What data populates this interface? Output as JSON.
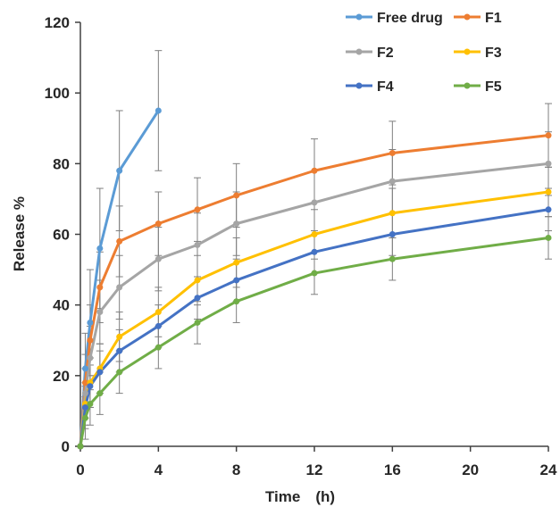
{
  "chart_data": {
    "type": "line",
    "xlabel": "Time　(h)",
    "ylabel": "Release %",
    "xlim": [
      0,
      24
    ],
    "ylim": [
      0,
      120
    ],
    "xticks": [
      0,
      4,
      8,
      12,
      16,
      20,
      24
    ],
    "yticks": [
      0,
      20,
      40,
      60,
      80,
      100,
      120
    ],
    "grid": false,
    "legend_position": "top-right",
    "series": [
      {
        "name": "Free drug",
        "color": "#5B9BD5",
        "x": [
          0,
          0.25,
          0.5,
          1,
          2,
          4
        ],
        "y": [
          0,
          22,
          35,
          56,
          78,
          95
        ],
        "err": [
          0,
          10,
          15,
          17,
          17,
          17
        ]
      },
      {
        "name": "F1",
        "color": "#ED7D31",
        "x": [
          0,
          0.25,
          0.5,
          1,
          2,
          4,
          6,
          8,
          12,
          16,
          24
        ],
        "y": [
          0,
          18,
          30,
          45,
          58,
          63,
          67,
          71,
          78,
          83,
          88
        ],
        "err": [
          0,
          8,
          10,
          10,
          10,
          9,
          9,
          9,
          9,
          9,
          9
        ]
      },
      {
        "name": "F2",
        "color": "#A5A5A5",
        "x": [
          0,
          0.25,
          0.5,
          1,
          2,
          4,
          6,
          8,
          12,
          16,
          24
        ],
        "y": [
          0,
          15,
          25,
          38,
          45,
          53,
          57,
          63,
          69,
          75,
          80
        ],
        "err": [
          0,
          7,
          9,
          9,
          9,
          9,
          9,
          9,
          9,
          9,
          9
        ]
      },
      {
        "name": "F3",
        "color": "#FFC000",
        "x": [
          0,
          0.25,
          0.5,
          1,
          2,
          4,
          6,
          8,
          12,
          16,
          24
        ],
        "y": [
          0,
          12,
          18,
          22,
          31,
          38,
          47,
          52,
          60,
          66,
          72
        ],
        "err": [
          0,
          6,
          7,
          7,
          7,
          7,
          7,
          7,
          7,
          7,
          7
        ]
      },
      {
        "name": "F4",
        "color": "#4472C4",
        "x": [
          0,
          0.25,
          0.5,
          1,
          2,
          4,
          6,
          8,
          12,
          16,
          24
        ],
        "y": [
          0,
          11,
          17,
          21,
          27,
          34,
          42,
          47,
          55,
          60,
          67
        ],
        "err": [
          0,
          6,
          6,
          6,
          6,
          6,
          6,
          6,
          6,
          6,
          6
        ]
      },
      {
        "name": "F5",
        "color": "#70AD47",
        "x": [
          0,
          0.25,
          0.5,
          1,
          2,
          4,
          6,
          8,
          12,
          16,
          24
        ],
        "y": [
          0,
          8,
          12,
          15,
          21,
          28,
          35,
          41,
          49,
          53,
          59
        ],
        "err": [
          0,
          6,
          6,
          6,
          6,
          6,
          6,
          6,
          6,
          6,
          6
        ]
      }
    ]
  }
}
